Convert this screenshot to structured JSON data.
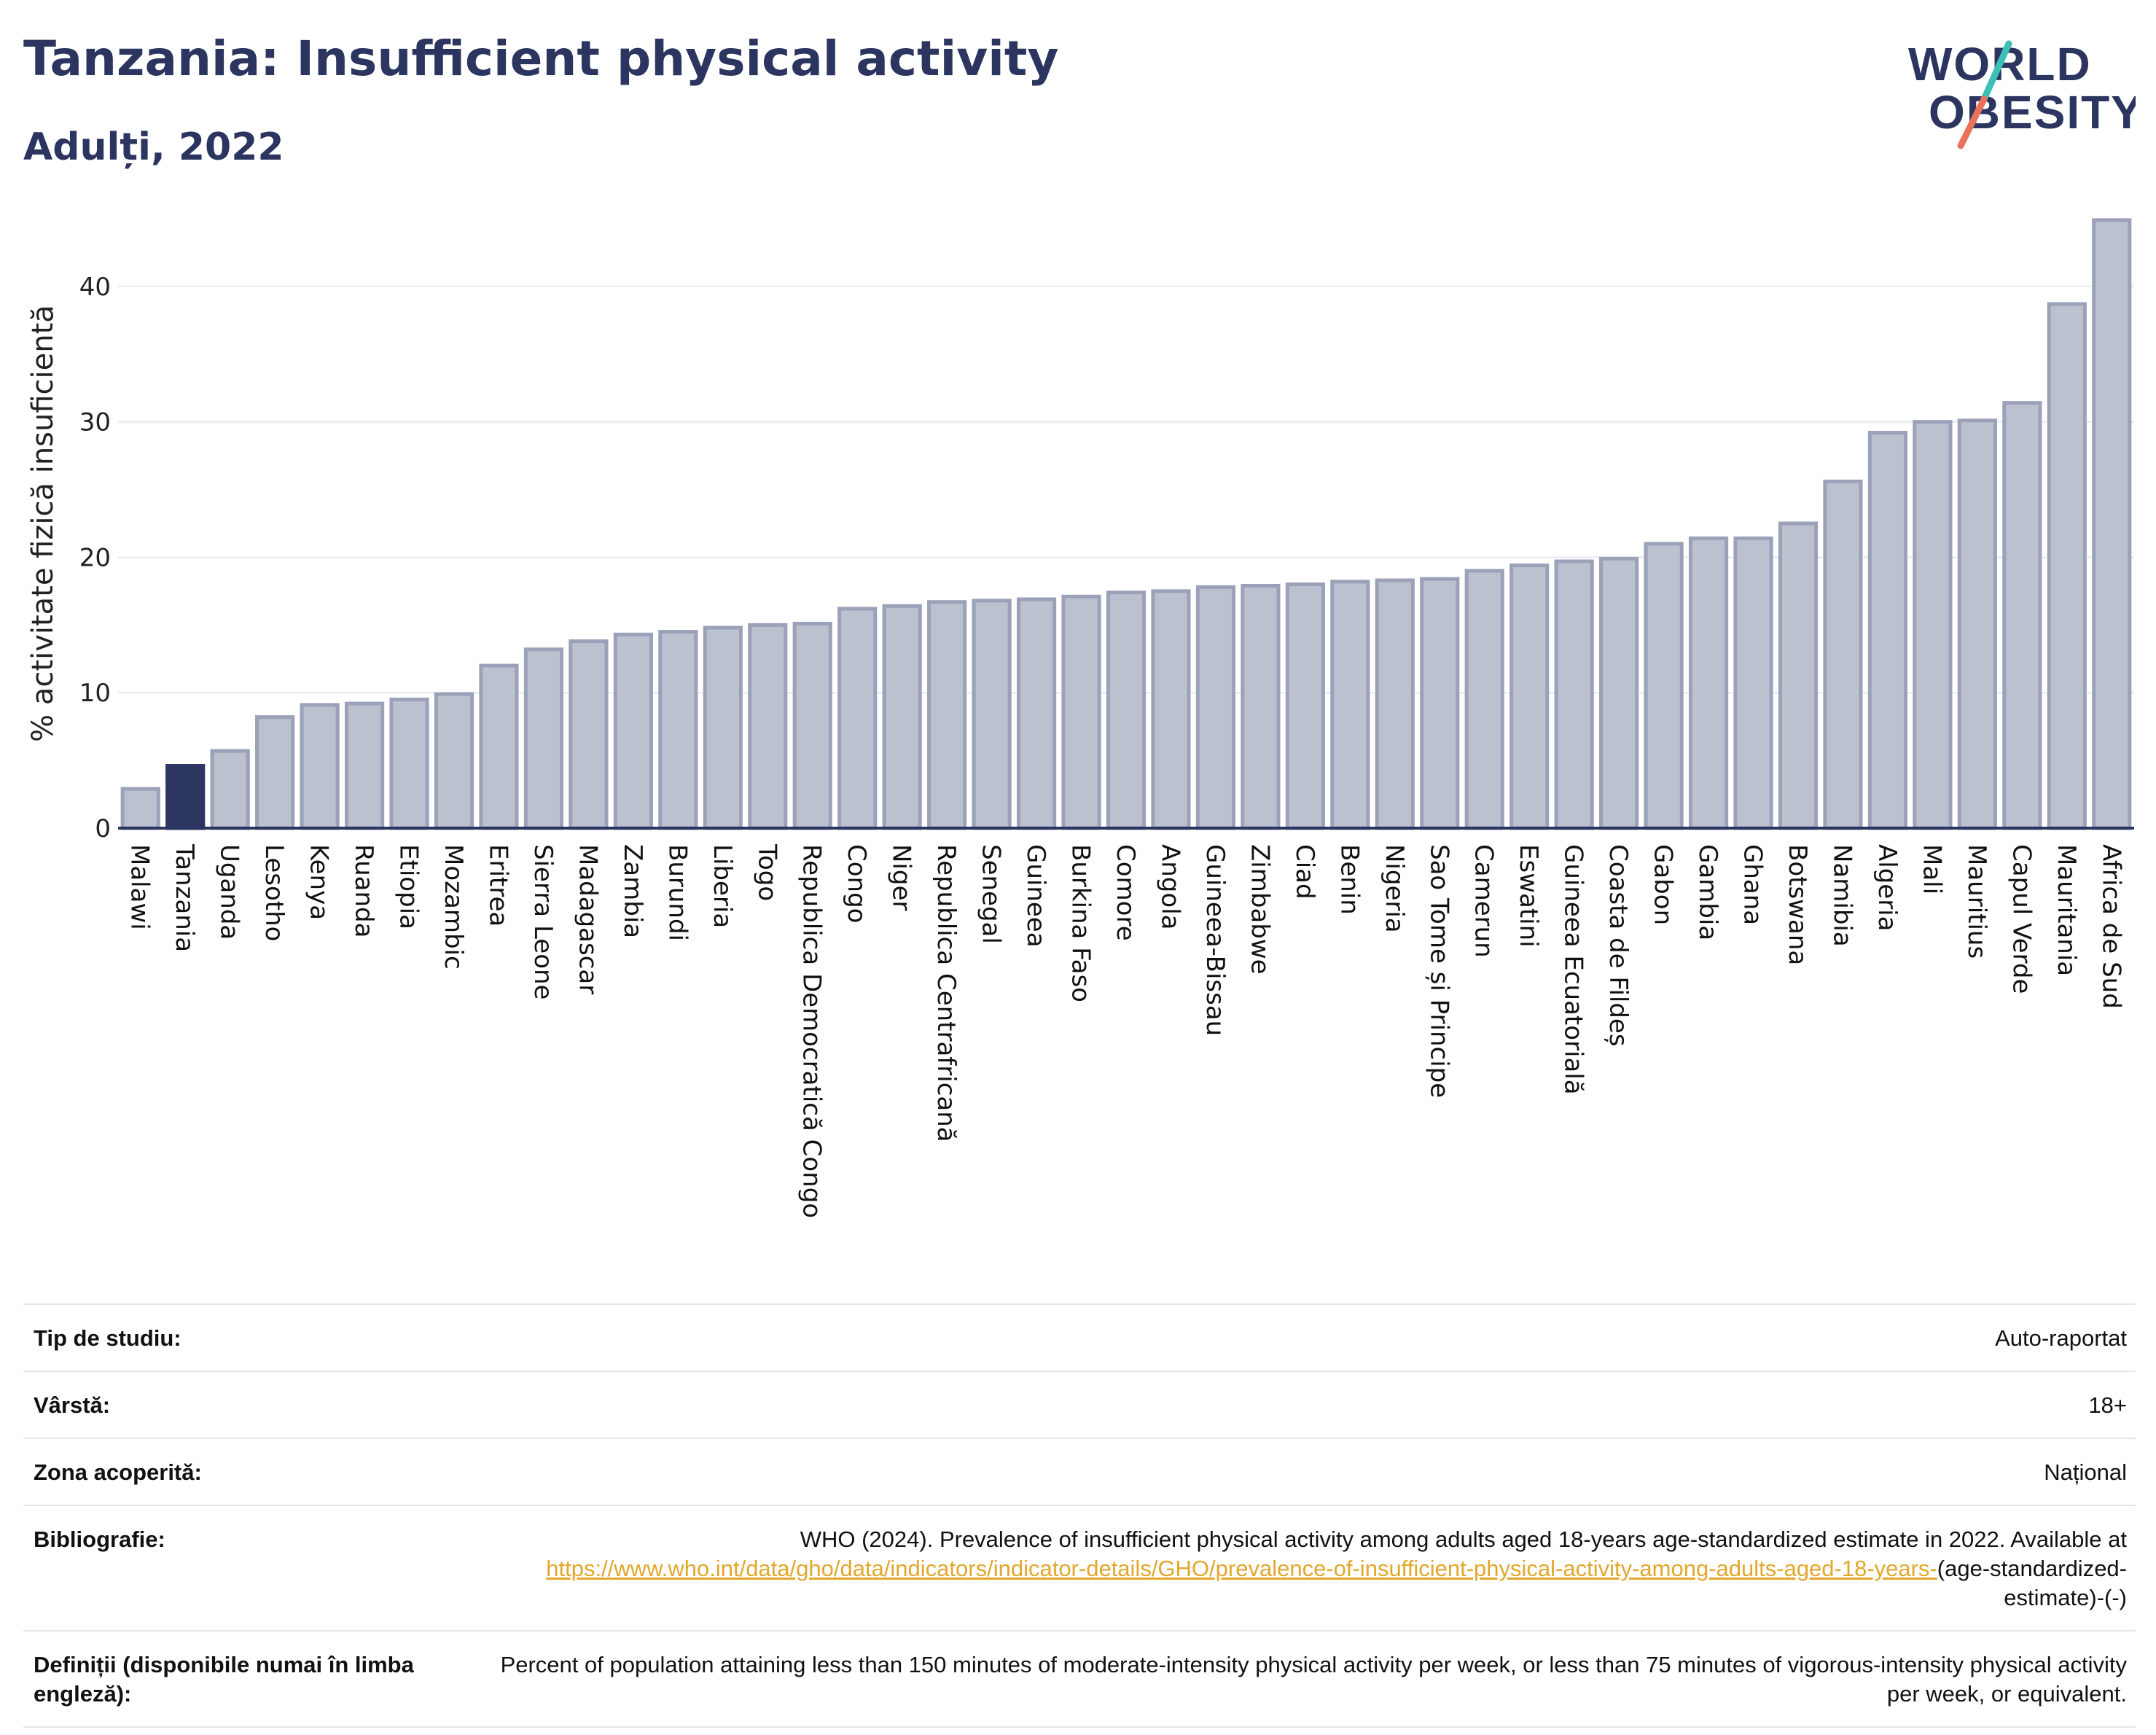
{
  "header": {
    "title": "Tanzania: Insufficient physical activity",
    "subtitle": "Adulți, 2022"
  },
  "logo": {
    "line1": "WORLD",
    "line2": "OBESITY"
  },
  "colors": {
    "highlight": "#2b3560",
    "bar_fill": "#bcc1cf",
    "bar_stroke": "#9aa1b8",
    "text_dark": "#2b3560",
    "link": "#e2a72b",
    "logo_teal": "#3dbfb8",
    "logo_coral": "#e8735a"
  },
  "chart_data": {
    "type": "bar",
    "ylabel": "% activitate fizică insuficientă",
    "xlabel": "",
    "ylim": [
      0,
      45
    ],
    "yticks": [
      0,
      10,
      20,
      30,
      40
    ],
    "grid": true,
    "highlight": "Tanzania",
    "categories": [
      "Malawi",
      "Tanzania",
      "Uganda",
      "Lesotho",
      "Kenya",
      "Ruanda",
      "Etiopia",
      "Mozambic",
      "Eritrea",
      "Sierra Leone",
      "Madagascar",
      "Zambia",
      "Burundi",
      "Liberia",
      "Togo",
      "Republica Democratică Congo",
      "Congo",
      "Niger",
      "Republica Centrafricană",
      "Senegal",
      "Guineea",
      "Burkina Faso",
      "Comore",
      "Angola",
      "Guineea-Bissau",
      "Zimbabwe",
      "Ciad",
      "Benin",
      "Nigeria",
      "Sao Tome și Principe",
      "Camerun",
      "Eswatini",
      "Guineea Ecuatorială",
      "Coasta de Fildeș",
      "Gabon",
      "Gambia",
      "Ghana",
      "Botswana",
      "Namibia",
      "Algeria",
      "Mali",
      "Mauritius",
      "Capul Verde",
      "Mauritania",
      "Africa de Sud"
    ],
    "values": [
      2.9,
      4.6,
      5.7,
      8.2,
      9.1,
      9.2,
      9.5,
      9.9,
      12.0,
      13.2,
      13.8,
      14.3,
      14.5,
      14.8,
      15.0,
      15.1,
      16.2,
      16.4,
      16.7,
      16.8,
      16.9,
      17.1,
      17.4,
      17.5,
      17.8,
      17.9,
      18.0,
      18.2,
      18.3,
      18.4,
      19.0,
      19.4,
      19.7,
      19.9,
      21.0,
      21.4,
      21.4,
      22.5,
      25.6,
      29.2,
      30.0,
      30.1,
      31.4,
      38.7,
      44.9
    ]
  },
  "meta": {
    "rows": [
      {
        "key": "Tip de studiu:",
        "value": "Auto-raportat"
      },
      {
        "key": "Vârstă:",
        "value": "18+"
      },
      {
        "key": "Zona acoperită:",
        "value": "Național"
      }
    ],
    "bibliography": {
      "key": "Bibliografie:",
      "text": "WHO (2024). Prevalence of insufficient physical activity among adults aged 18-years age-standardized estimate in 2022. Available at",
      "link": "https://www.who.int/data/gho/data/indicators/indicator-details/GHO/prevalence-of-insufficient-physical-activity-among-adults-aged-18-years-",
      "suffix": "(age-standardized-estimate)-(-)"
    },
    "definitions": {
      "key": "Definiții (disponibile numai în limba engleză):",
      "value": "Percent of population attaining less than 150 minutes of moderate-intensity physical activity per week, or less than 75 minutes of vigorous-intensity physical activity per week, or equivalent."
    }
  }
}
